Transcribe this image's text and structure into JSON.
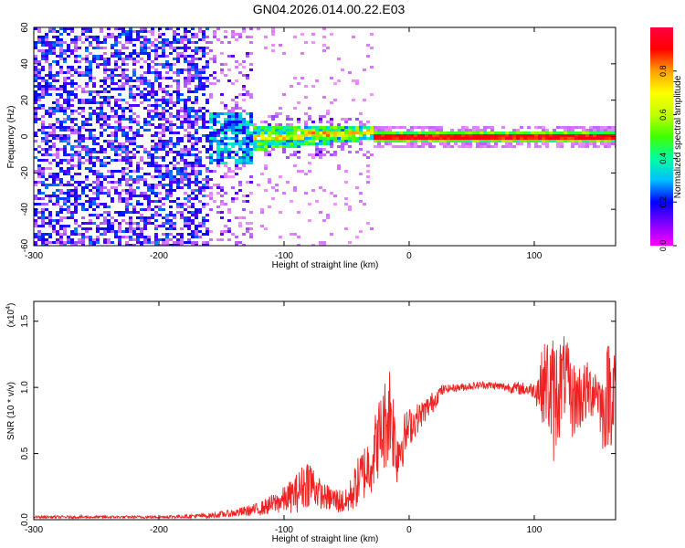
{
  "title": "GN04.2026.014.00.22.E03",
  "chart_data": [
    {
      "type": "heatmap",
      "xlabel": "Height of straight line (km)",
      "ylabel": "Frequency (Hz)",
      "xlim": [
        -300,
        165
      ],
      "ylim": [
        -60,
        60
      ],
      "xticks": [
        -300,
        -200,
        -100,
        0,
        100
      ],
      "yticks": [
        -60,
        -40,
        -20,
        0,
        20,
        40,
        60
      ],
      "colorbar": {
        "label": "Normalized spectral amplitude",
        "range": [
          0.0,
          1.0
        ],
        "ticks": [
          "0.0",
          "0.2",
          "0.4",
          "0.6",
          "0.8"
        ],
        "colormap": [
          "#ff00ff",
          "#8000ff",
          "#0000ff",
          "#00bfff",
          "#00ffa0",
          "#40ff00",
          "#c0ff00",
          "#ffff00",
          "#ffa000",
          "#ff0000",
          "#ff0040"
        ]
      },
      "regions": [
        {
          "x": [
            -300,
            -160
          ],
          "description_value": "scattered noise",
          "freq_range": [
            -60,
            60
          ],
          "amplitude": [
            0.05,
            0.25
          ]
        },
        {
          "x": [
            -160,
            -120
          ],
          "description_value": "dense noise",
          "freq_range": [
            -10,
            10
          ],
          "amplitude": [
            0.2,
            0.5
          ]
        },
        {
          "x": [
            -120,
            -30
          ],
          "description_value": "signal emerging",
          "freq_range": [
            -5,
            8
          ],
          "amplitude": [
            0.3,
            0.9
          ]
        },
        {
          "x": [
            -30,
            165
          ],
          "description_value": "narrow band",
          "freq_range": [
            -2,
            2
          ],
          "amplitude": [
            0.8,
            1.0
          ]
        }
      ]
    },
    {
      "type": "line",
      "xlabel": "Height of straight line (km)",
      "ylabel": "SNR (10 * v/v)",
      "y_multiplier": "(x10",
      "y_multiplier_exp": "4",
      "y_multiplier_close": ")",
      "xlim": [
        -300,
        165
      ],
      "ylim": [
        0.0,
        1.65
      ],
      "xticks": [
        -300,
        -200,
        -100,
        0,
        100
      ],
      "yticks": [
        0.0,
        0.5,
        1.0,
        1.5
      ],
      "color": "#ee2222",
      "series": [
        {
          "x": [
            -300,
            -250,
            -200,
            -160,
            -140,
            -120,
            -100,
            -90,
            -80,
            -70,
            -60,
            -50,
            -40,
            -30,
            -25,
            -20,
            -15,
            -10,
            -5,
            0,
            10,
            20,
            25,
            30,
            40,
            50,
            60,
            70,
            80,
            90,
            100,
            105,
            110,
            115,
            120,
            125,
            130,
            140,
            150,
            155,
            160,
            165
          ],
          "y": [
            0.02,
            0.02,
            0.02,
            0.03,
            0.05,
            0.08,
            0.15,
            0.2,
            0.3,
            0.18,
            0.15,
            0.13,
            0.3,
            0.45,
            0.6,
            0.7,
            0.85,
            0.5,
            0.6,
            0.7,
            0.8,
            0.9,
            0.97,
            0.99,
            1.0,
            1.01,
            1.02,
            1.01,
            1.0,
            0.99,
            0.98,
            1.0,
            1.05,
            0.9,
            1.0,
            1.1,
            0.9,
            0.95,
            1.0,
            0.8,
            1.0,
            0.95
          ],
          "noise": [
            0.01,
            0.01,
            0.01,
            0.02,
            0.03,
            0.05,
            0.1,
            0.15,
            0.2,
            0.1,
            0.1,
            0.1,
            0.2,
            0.25,
            0.3,
            0.35,
            0.4,
            0.25,
            0.2,
            0.15,
            0.1,
            0.08,
            0.05,
            0.03,
            0.03,
            0.03,
            0.03,
            0.03,
            0.04,
            0.05,
            0.06,
            0.25,
            0.35,
            0.5,
            0.4,
            0.3,
            0.3,
            0.25,
            0.2,
            0.3,
            0.45,
            0.4
          ]
        }
      ]
    }
  ]
}
